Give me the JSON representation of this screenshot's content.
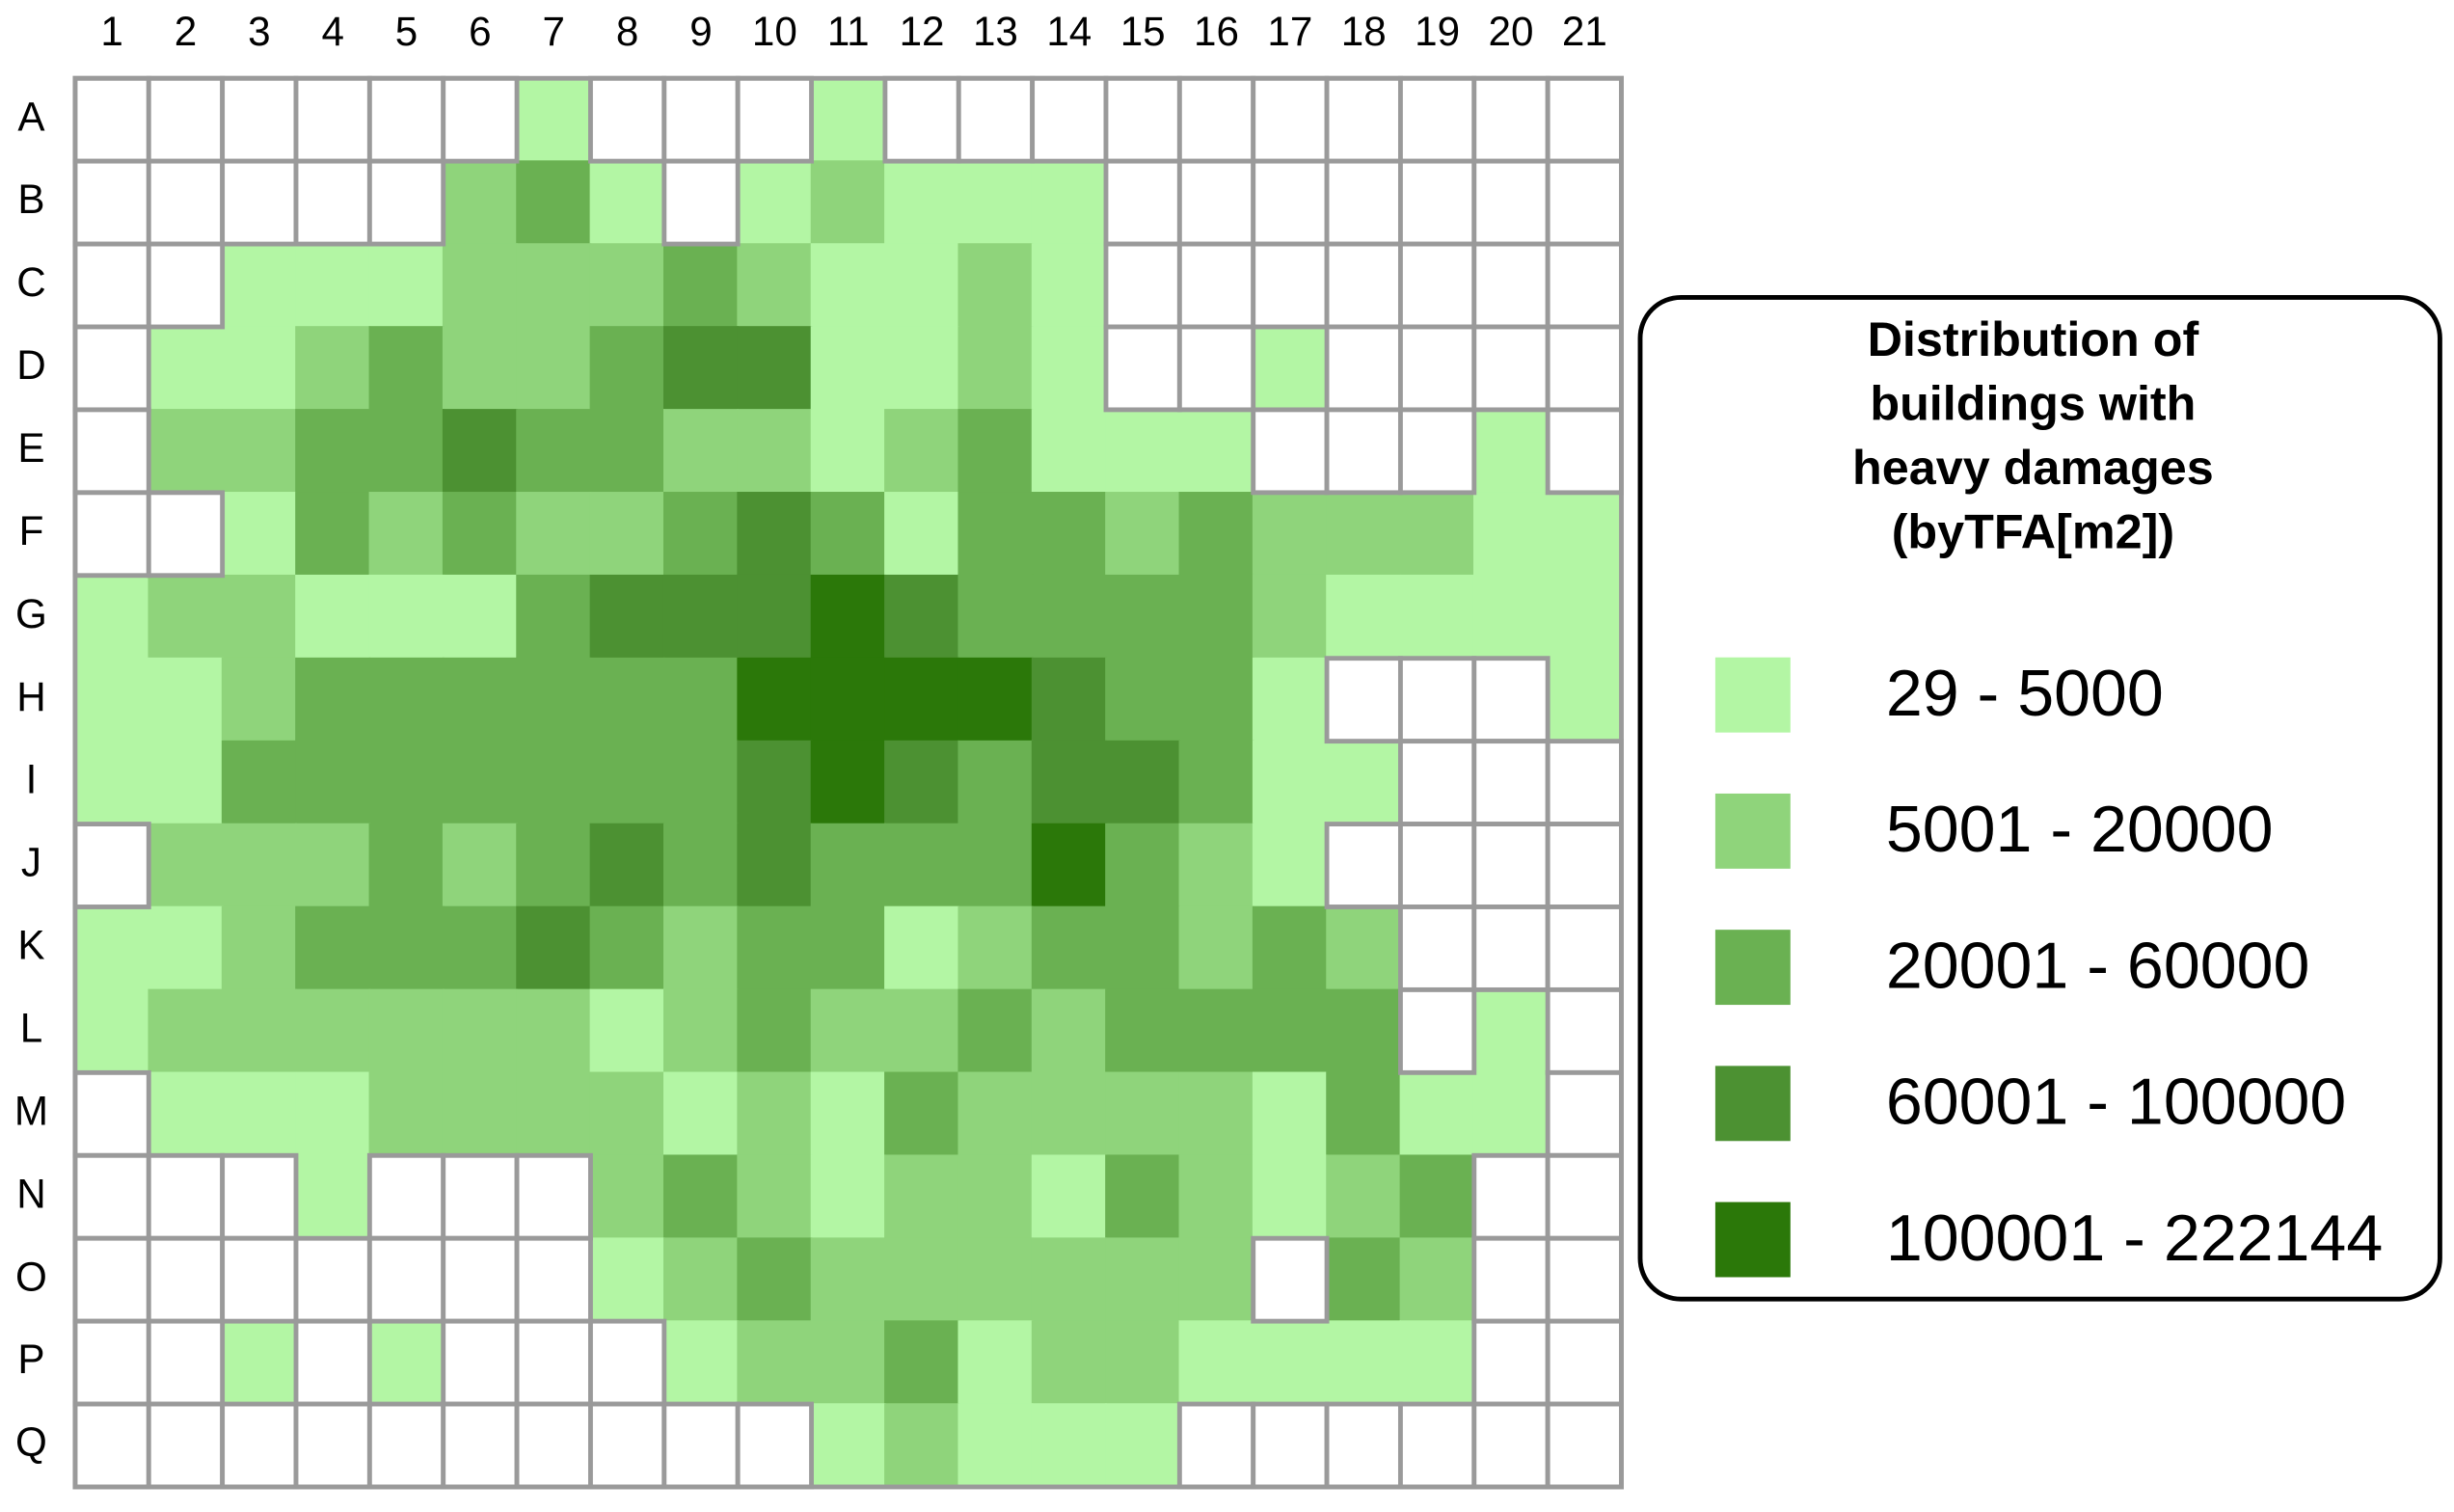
{
  "map": {
    "columns": [
      "1",
      "2",
      "3",
      "4",
      "5",
      "6",
      "7",
      "8",
      "9",
      "10",
      "11",
      "12",
      "13",
      "14",
      "15",
      "16",
      "17",
      "18",
      "19",
      "20",
      "21"
    ],
    "rows": [
      "A",
      "B",
      "C",
      "D",
      "E",
      "F",
      "G",
      "H",
      "I",
      "J",
      "K",
      "L",
      "M",
      "N",
      "O",
      "P",
      "Q"
    ],
    "grid": [
      [
        0,
        0,
        0,
        0,
        0,
        0,
        1,
        0,
        0,
        0,
        1,
        0,
        0,
        0,
        0,
        0,
        0,
        0,
        0,
        0,
        0
      ],
      [
        0,
        0,
        0,
        0,
        0,
        2,
        3,
        1,
        0,
        1,
        2,
        1,
        1,
        1,
        0,
        0,
        0,
        0,
        0,
        0,
        0
      ],
      [
        0,
        0,
        1,
        1,
        1,
        2,
        2,
        2,
        3,
        2,
        1,
        1,
        2,
        1,
        0,
        0,
        0,
        0,
        0,
        0,
        0
      ],
      [
        0,
        1,
        1,
        2,
        3,
        2,
        2,
        3,
        4,
        4,
        1,
        1,
        2,
        1,
        0,
        0,
        1,
        0,
        0,
        0,
        0
      ],
      [
        0,
        2,
        2,
        3,
        3,
        4,
        3,
        3,
        2,
        2,
        1,
        2,
        3,
        1,
        1,
        1,
        0,
        0,
        0,
        1,
        0
      ],
      [
        0,
        0,
        1,
        3,
        2,
        3,
        2,
        2,
        3,
        4,
        3,
        1,
        3,
        3,
        2,
        3,
        2,
        2,
        2,
        1,
        1
      ],
      [
        1,
        2,
        2,
        1,
        1,
        1,
        3,
        4,
        4,
        4,
        5,
        4,
        3,
        3,
        3,
        3,
        2,
        1,
        1,
        1,
        1
      ],
      [
        1,
        1,
        2,
        3,
        3,
        3,
        3,
        3,
        3,
        5,
        5,
        5,
        5,
        4,
        3,
        3,
        1,
        0,
        0,
        0,
        1
      ],
      [
        1,
        1,
        3,
        3,
        3,
        3,
        3,
        3,
        3,
        4,
        5,
        4,
        3,
        4,
        4,
        3,
        1,
        1,
        0,
        0,
        0
      ],
      [
        0,
        2,
        2,
        2,
        3,
        2,
        3,
        4,
        3,
        4,
        3,
        3,
        3,
        5,
        3,
        2,
        1,
        0,
        0,
        0,
        0
      ],
      [
        1,
        1,
        2,
        3,
        3,
        3,
        4,
        3,
        2,
        3,
        3,
        1,
        2,
        3,
        3,
        2,
        3,
        2,
        0,
        0,
        0
      ],
      [
        1,
        2,
        2,
        2,
        2,
        2,
        2,
        1,
        2,
        3,
        2,
        2,
        3,
        2,
        3,
        3,
        3,
        3,
        0,
        1,
        0
      ],
      [
        0,
        1,
        1,
        1,
        2,
        2,
        2,
        2,
        1,
        2,
        1,
        3,
        2,
        2,
        2,
        2,
        1,
        3,
        1,
        1,
        0
      ],
      [
        0,
        0,
        0,
        1,
        0,
        0,
        0,
        2,
        3,
        2,
        1,
        2,
        2,
        1,
        3,
        2,
        1,
        2,
        3,
        0,
        0
      ],
      [
        0,
        0,
        0,
        0,
        0,
        0,
        0,
        1,
        2,
        3,
        2,
        2,
        2,
        2,
        2,
        2,
        0,
        3,
        2,
        0,
        0
      ],
      [
        0,
        0,
        1,
        0,
        1,
        0,
        0,
        0,
        1,
        2,
        2,
        3,
        1,
        2,
        2,
        1,
        1,
        1,
        1,
        0,
        0
      ],
      [
        0,
        0,
        0,
        0,
        0,
        0,
        0,
        0,
        0,
        0,
        1,
        2,
        1,
        1,
        1,
        0,
        0,
        0,
        0,
        0,
        0
      ]
    ],
    "legend": {
      "title": [
        "Distribution of",
        "buildings with",
        "heavy damages",
        "(byTFA[m2])"
      ],
      "classes": [
        {
          "label": "29 - 5000",
          "color": "#b3f6a4"
        },
        {
          "label": "5001 - 20000",
          "color": "#8fd47b"
        },
        {
          "label": "20001 - 60000",
          "color": "#6ab152"
        },
        {
          "label": "60001 - 100000",
          "color": "#4c9132"
        },
        {
          "label": "100001 - 222144",
          "color": "#2b7809"
        }
      ]
    }
  }
}
